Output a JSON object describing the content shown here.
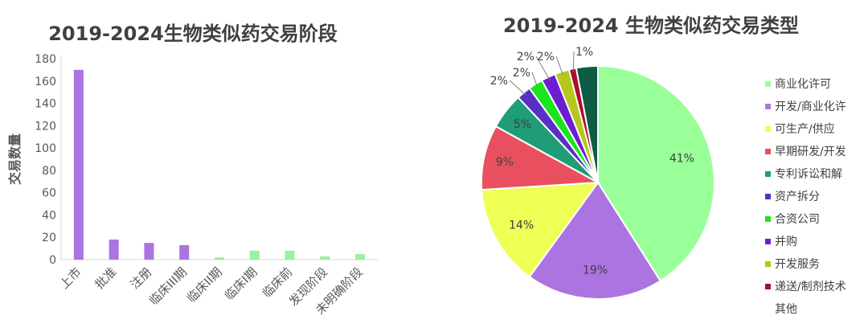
{
  "chart_data": [
    {
      "type": "bar",
      "title": "2019-2024生物类似药交易阶段",
      "ylabel": "交易数量",
      "xlabel": "",
      "ylim": [
        0,
        180
      ],
      "yticks": [
        0,
        20,
        40,
        60,
        80,
        100,
        120,
        140,
        160,
        180
      ],
      "grid": false,
      "categories": [
        "上市",
        "批准",
        "注册",
        "临床III期",
        "临床II期",
        "临床I期",
        "临床前",
        "发现阶段",
        "未明确阶段"
      ],
      "values": [
        170,
        18,
        15,
        13,
        2,
        8,
        8,
        3,
        5
      ],
      "colors": [
        "#ab74e0",
        "#ab74e0",
        "#ab74e0",
        "#ab74e0",
        "#99f2a0",
        "#99f2a0",
        "#99f2a0",
        "#99f2a0",
        "#99f2a0"
      ]
    },
    {
      "type": "pie",
      "title": "2019-2024 生物类似药交易类型",
      "legend_position": "right",
      "slices": [
        {
          "label": "商业化许可",
          "value": 41,
          "pct_label": "41%",
          "color": "#99ff99"
        },
        {
          "label": "开发/商业化许",
          "value": 19,
          "pct_label": "19%",
          "color": "#ab74e0"
        },
        {
          "label": "可生产/供应",
          "value": 14,
          "pct_label": "14%",
          "color": "#eeff55"
        },
        {
          "label": "早期研发/开发",
          "value": 9,
          "pct_label": "9%",
          "color": "#e9505f"
        },
        {
          "label": "专利诉讼和解",
          "value": 5,
          "pct_label": "5%",
          "color": "#1f9c78"
        },
        {
          "label": "资产拆分",
          "value": 2,
          "pct_label": "2%",
          "color": "#5a30c2"
        },
        {
          "label": "合资公司",
          "value": 2,
          "pct_label": "2%",
          "color": "#19e51d"
        },
        {
          "label": "并购",
          "value": 2,
          "pct_label": "2%",
          "color": "#6c1fd0"
        },
        {
          "label": "开发服务",
          "value": 2,
          "pct_label": "2%",
          "color": "#b5c71a"
        },
        {
          "label": "递送/制剂技术",
          "value": 1,
          "pct_label": "1%",
          "color": "#a8102c"
        },
        {
          "label": "其他",
          "value": 3,
          "pct_label": "",
          "color": "#0e5c45"
        }
      ]
    }
  ]
}
